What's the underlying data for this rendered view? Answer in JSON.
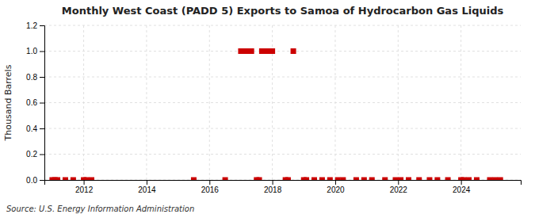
{
  "chart_data": {
    "type": "scatter",
    "title": "Monthly West Coast (PADD 5) Exports to Samoa of Hydrocarbon Gas Liquids",
    "ylabel": "Thousand Barrels",
    "source": "Source: U.S. Energy Information Administration",
    "color": "#cc0000",
    "marker": "square",
    "grid": true,
    "xlim": [
      2010.75,
      2025.9
    ],
    "xticks": [
      2012,
      2014,
      2016,
      2018,
      2020,
      2022,
      2024
    ],
    "ylim": [
      0,
      1.2
    ],
    "yticks": [
      {
        "value": 0.0,
        "label": "0.0"
      },
      0.2,
      0.4,
      0.6,
      0.8,
      {
        "value": 1.0,
        "label": "1.0"
      },
      1.2
    ],
    "x": [
      2011.0,
      2011.083,
      2011.167,
      2011.417,
      2011.667,
      2012.0,
      2012.083,
      2012.25,
      2015.5,
      2016.5,
      2017.0,
      2017.083,
      2017.167,
      2017.25,
      2017.333,
      2017.5,
      2017.583,
      2017.667,
      2017.75,
      2017.833,
      2017.917,
      2018.0,
      2018.417,
      2018.5,
      2018.667,
      2019.0,
      2019.083,
      2019.333,
      2019.583,
      2019.833,
      2020.083,
      2020.25,
      2020.667,
      2020.917,
      2021.167,
      2021.583,
      2021.917,
      2022.083,
      2022.333,
      2022.667,
      2023.0,
      2023.25,
      2023.583,
      2024.0,
      2024.083,
      2024.25,
      2024.5,
      2024.917,
      2025.083,
      2025.25
    ],
    "values": [
      0.0,
      0.0,
      0.0,
      0.0,
      0.0,
      0.0,
      0.0,
      0.0,
      0.0,
      0.0,
      1.0,
      1.0,
      1.0,
      1.0,
      1.0,
      0.0,
      0.0,
      1.0,
      1.0,
      1.0,
      1.0,
      1.0,
      0.0,
      0.0,
      1.0,
      0.0,
      0.0,
      0.0,
      0.0,
      0.0,
      0.0,
      0.0,
      0.0,
      0.0,
      0.0,
      0.0,
      0.0,
      0.0,
      0.0,
      0.0,
      0.0,
      0.0,
      0.0,
      0.0,
      0.0,
      0.0,
      0.0,
      0.0,
      0.0,
      0.0
    ]
  }
}
